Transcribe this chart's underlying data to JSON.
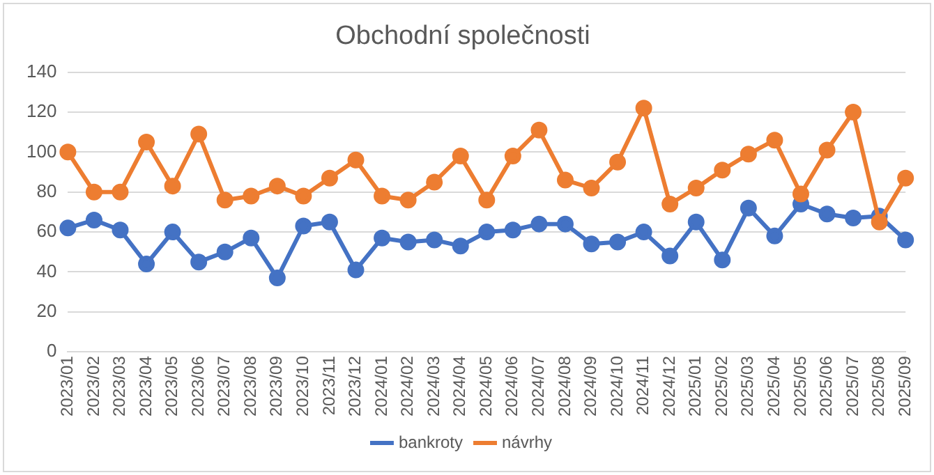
{
  "chart_data": {
    "type": "line",
    "title": "Obchodní společnosti",
    "categories": [
      "2023/01",
      "2023/02",
      "2023/03",
      "2023/04",
      "2023/05",
      "2023/06",
      "2023/07",
      "2023/08",
      "2023/09",
      "2023/10",
      "2023/11",
      "2023/12",
      "2024/01",
      "2024/02",
      "2024/03",
      "2024/04",
      "2024/05",
      "2024/06",
      "2024/07",
      "2024/08",
      "2024/09",
      "2024/10",
      "2024/11",
      "2024/12",
      "2025/01",
      "2025/02",
      "2025/03",
      "2025/04",
      "2025/05",
      "2025/06",
      "2025/07",
      "2025/08",
      "2025/09"
    ],
    "series": [
      {
        "name": "bankroty",
        "color": "#4472c4",
        "values": [
          62,
          66,
          61,
          44,
          60,
          45,
          50,
          57,
          37,
          63,
          65,
          41,
          57,
          55,
          56,
          53,
          60,
          61,
          64,
          64,
          54,
          55,
          60,
          48,
          65,
          46,
          72,
          58,
          74,
          69,
          67,
          68,
          56
        ]
      },
      {
        "name": "návrhy",
        "color": "#ed7d31",
        "values": [
          100,
          80,
          80,
          105,
          83,
          109,
          76,
          78,
          83,
          78,
          87,
          96,
          78,
          76,
          85,
          98,
          76,
          98,
          111,
          86,
          82,
          95,
          122,
          74,
          82,
          91,
          99,
          106,
          79,
          101,
          120,
          65,
          87
        ]
      }
    ],
    "ylim": [
      0,
      140
    ],
    "yticks": [
      0,
      20,
      40,
      60,
      80,
      100,
      120,
      140
    ],
    "grid": "y",
    "legend": "bottom",
    "marker": "circle",
    "line_style": "solid"
  }
}
